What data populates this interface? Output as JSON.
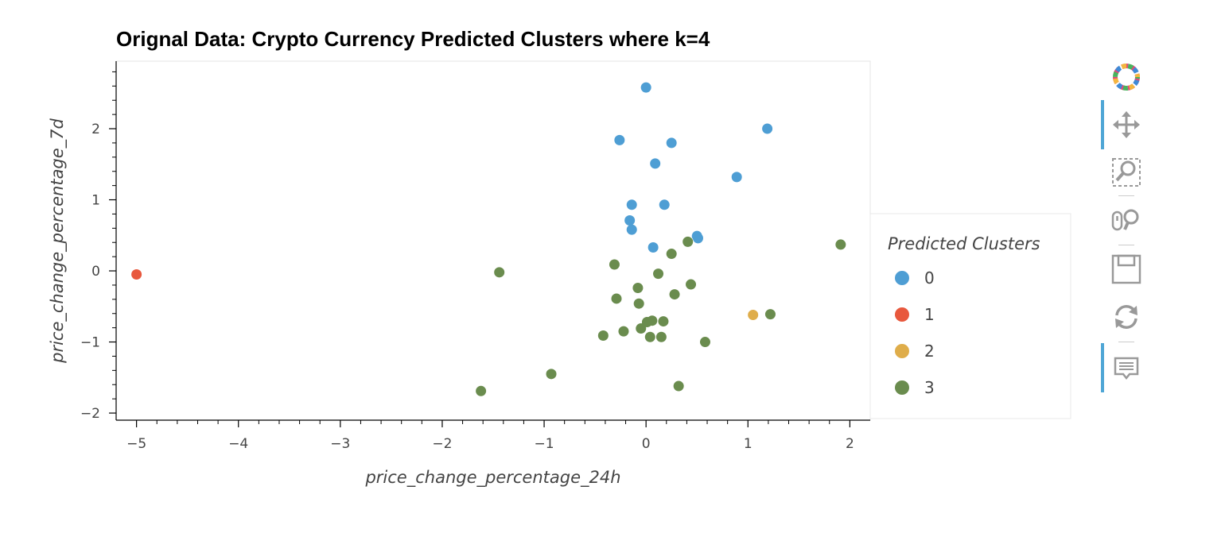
{
  "toolbar": {
    "logo_icon": "bokeh-logo-icon",
    "tools": [
      {
        "name": "pan-tool",
        "icon": "move-arrows-icon",
        "active": true
      },
      {
        "name": "box-zoom-tool",
        "icon": "box-zoom-icon",
        "active": false
      },
      {
        "name": "wheel-zoom-tool",
        "icon": "wheel-zoom-icon",
        "active": false
      },
      {
        "name": "save-tool",
        "icon": "save-icon",
        "active": false
      },
      {
        "name": "reset-tool",
        "icon": "reset-icon",
        "active": false
      },
      {
        "name": "hover-tool",
        "icon": "hover-icon",
        "active": true
      }
    ]
  },
  "chart_data": {
    "type": "scatter",
    "title": "Orignal Data: Crypto Currency Predicted Clusters where k=4",
    "xlabel": "price_change_percentage_24h",
    "ylabel": "price_change_percentage_7d",
    "xlim": [
      -5.2,
      2.2
    ],
    "ylim": [
      -2.1,
      2.95
    ],
    "x_ticks": [
      -5,
      -4,
      -3,
      -2,
      -1,
      0,
      1,
      2
    ],
    "x_tick_labels": [
      "−5",
      "−4",
      "−3",
      "−2",
      "−1",
      "0",
      "1",
      "2"
    ],
    "y_ticks": [
      -2,
      -1,
      0,
      1,
      2
    ],
    "y_tick_labels": [
      "−2",
      "−1",
      "0",
      "1",
      "2"
    ],
    "grid": false,
    "legend": {
      "title": "Predicted Clusters",
      "placement": "right"
    },
    "series": [
      {
        "name": "0",
        "color": "#4e9ed4",
        "points": [
          [
            0.0,
            2.58
          ],
          [
            1.19,
            2.0
          ],
          [
            -0.26,
            1.84
          ],
          [
            0.25,
            1.8
          ],
          [
            0.09,
            1.51
          ],
          [
            0.89,
            1.32
          ],
          [
            -0.14,
            0.93
          ],
          [
            0.18,
            0.93
          ],
          [
            -0.16,
            0.71
          ],
          [
            -0.14,
            0.58
          ],
          [
            0.5,
            0.49
          ],
          [
            0.51,
            0.46
          ],
          [
            0.07,
            0.33
          ]
        ]
      },
      {
        "name": "1",
        "color": "#e8583d",
        "points": [
          [
            -5.0,
            -0.05
          ]
        ]
      },
      {
        "name": "2",
        "color": "#dfad4a",
        "points": [
          [
            1.05,
            -0.62
          ]
        ]
      },
      {
        "name": "3",
        "color": "#6a8c4e",
        "points": [
          [
            1.91,
            0.37
          ],
          [
            0.41,
            0.41
          ],
          [
            0.25,
            0.24
          ],
          [
            -0.31,
            0.09
          ],
          [
            -1.44,
            -0.02
          ],
          [
            0.12,
            -0.04
          ],
          [
            0.44,
            -0.19
          ],
          [
            -0.08,
            -0.24
          ],
          [
            0.28,
            -0.33
          ],
          [
            -0.29,
            -0.39
          ],
          [
            -0.07,
            -0.46
          ],
          [
            1.22,
            -0.61
          ],
          [
            0.06,
            -0.7
          ],
          [
            0.17,
            -0.71
          ],
          [
            0.01,
            -0.72
          ],
          [
            -0.05,
            -0.81
          ],
          [
            -0.22,
            -0.85
          ],
          [
            -0.42,
            -0.91
          ],
          [
            0.04,
            -0.93
          ],
          [
            0.15,
            -0.93
          ],
          [
            0.58,
            -1.0
          ],
          [
            -0.93,
            -1.45
          ],
          [
            0.32,
            -1.62
          ],
          [
            -1.62,
            -1.69
          ]
        ]
      }
    ]
  }
}
